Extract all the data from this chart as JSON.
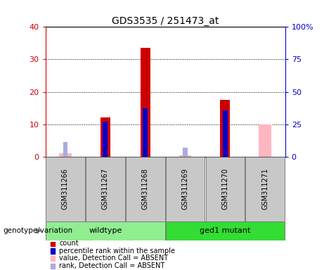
{
  "title": "GDS3535 / 251473_at",
  "samples": [
    "GSM311266",
    "GSM311267",
    "GSM311268",
    "GSM311269",
    "GSM311270",
    "GSM311271"
  ],
  "count_values": [
    null,
    12.0,
    33.5,
    null,
    17.5,
    null
  ],
  "rank_values_pct": [
    null,
    27.0,
    37.5,
    null,
    35.5,
    null
  ],
  "absent_value": [
    1.0,
    null,
    null,
    0.4,
    null,
    10.0
  ],
  "absent_rank_pct": [
    11.5,
    null,
    null,
    7.0,
    null,
    null
  ],
  "left_ylim": [
    0,
    40
  ],
  "left_yticks": [
    0,
    10,
    20,
    30,
    40
  ],
  "right_ylim": [
    0,
    100
  ],
  "right_yticks": [
    0,
    25,
    50,
    75,
    100
  ],
  "left_tick_color": "#CC0000",
  "right_tick_color": "#0000CC",
  "count_color": "#CC0000",
  "rank_color": "#0000CC",
  "absent_value_color": "#FFB6C1",
  "absent_rank_color": "#AAAADD",
  "legend_items": [
    "count",
    "percentile rank within the sample",
    "value, Detection Call = ABSENT",
    "rank, Detection Call = ABSENT"
  ],
  "legend_colors": [
    "#CC0000",
    "#0000CC",
    "#FFB6C1",
    "#AAAADD"
  ],
  "genotype_label": "genotype/variation",
  "wildtype_color": "#90EE90",
  "mutant_color": "#33DD33",
  "sample_box_color": "#C8C8C8",
  "plot_border_color": "#000000"
}
